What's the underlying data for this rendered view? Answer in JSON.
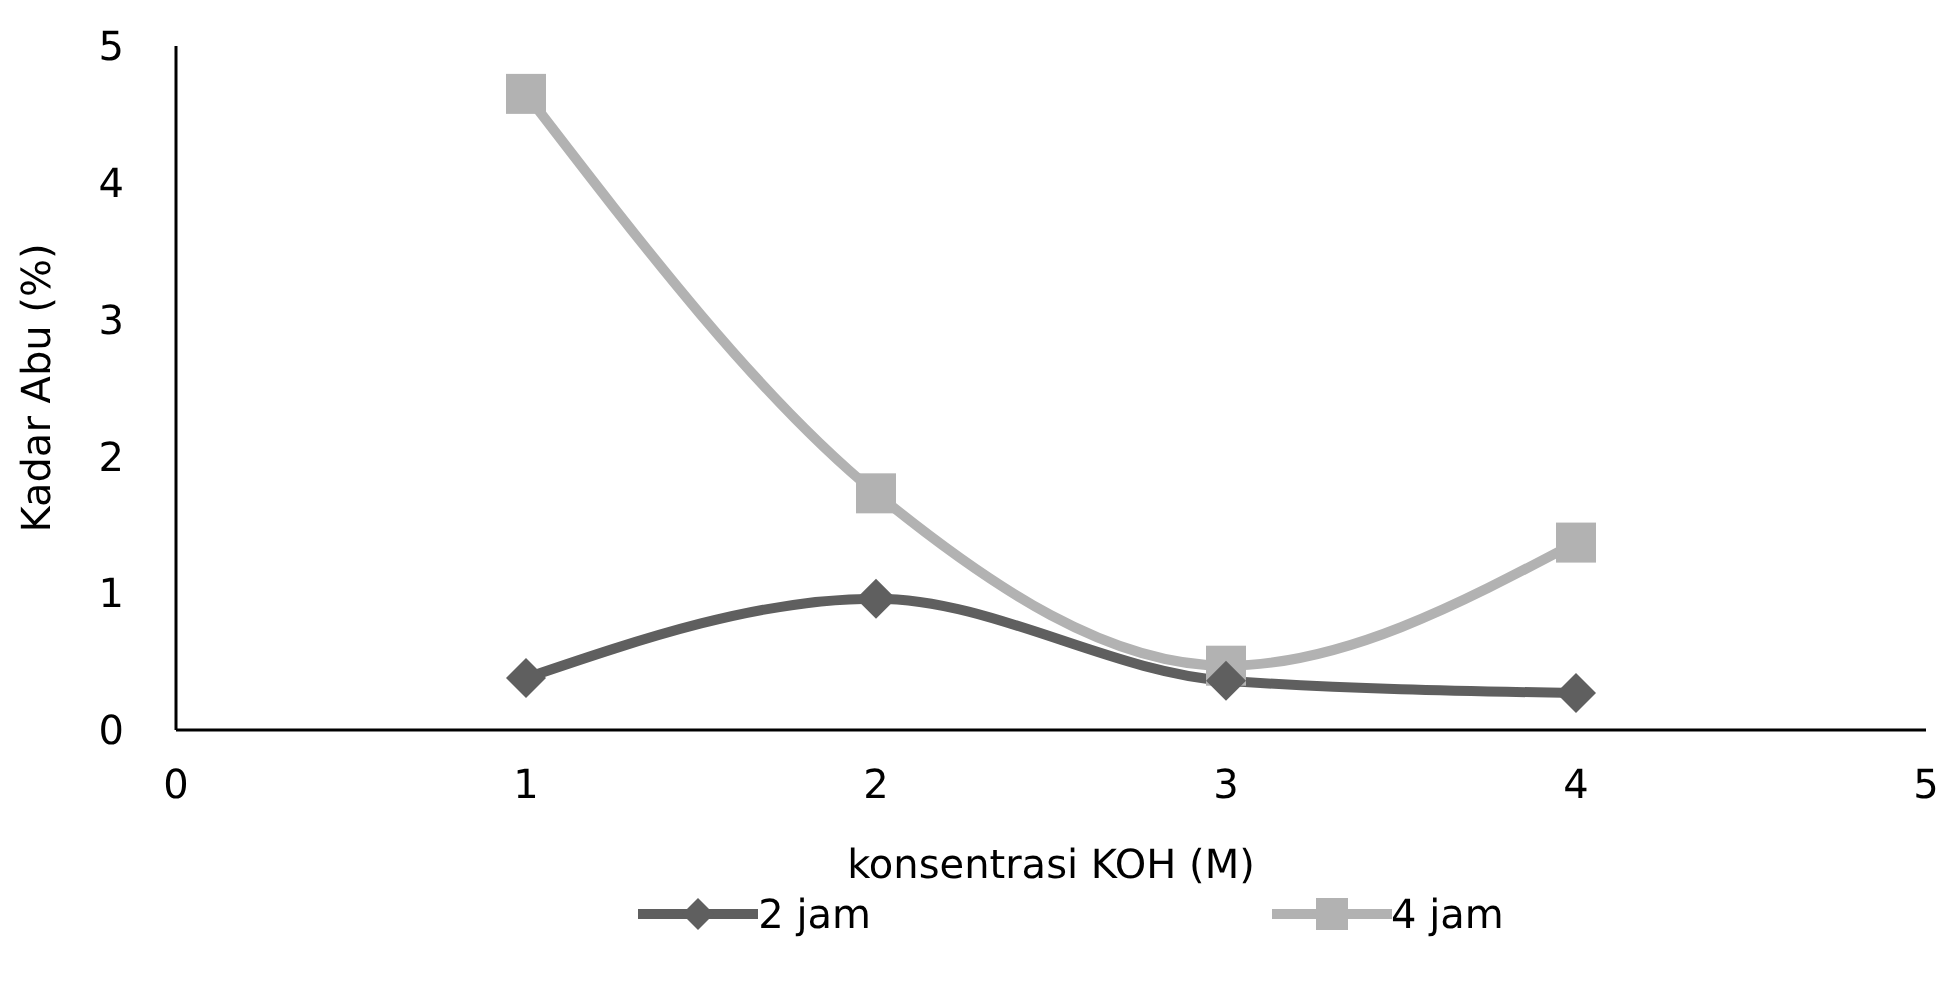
{
  "chart_data": {
    "type": "line",
    "xlabel": "konsentrasi KOH (M)",
    "ylabel": "Kadar Abu (%)",
    "x": [
      1,
      2,
      3,
      4
    ],
    "series": [
      {
        "name": "2 jam",
        "color": "#5f5f5f",
        "values": [
          0.38,
          0.96,
          0.36,
          0.27
        ],
        "marker": "diamond"
      },
      {
        "name": "4 jam",
        "color": "#b2b2b2",
        "values": [
          4.65,
          1.73,
          0.47,
          1.37
        ],
        "marker": "square"
      }
    ],
    "xlim": [
      0,
      5
    ],
    "xticks": [
      0,
      1,
      2,
      3,
      4,
      5
    ],
    "ylim": [
      0,
      5
    ],
    "yticks": [
      0,
      1,
      2,
      3,
      4,
      5
    ],
    "grid": false,
    "legend": "bottom",
    "line_style": "solid"
  }
}
